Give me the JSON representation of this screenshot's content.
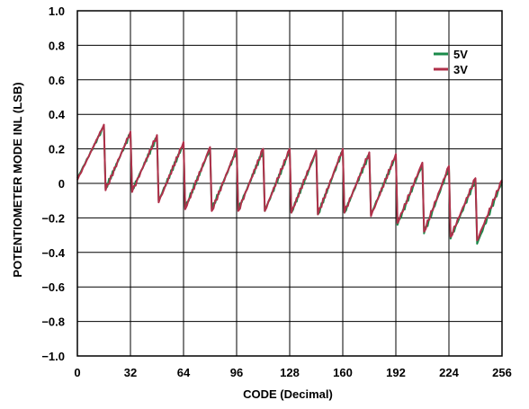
{
  "chart_data": {
    "type": "line",
    "xlabel": "CODE (Decimal)",
    "ylabel": "POTENTIOMETER MODE INL (LSB)",
    "xlim": [
      0,
      256
    ],
    "ylim": [
      -1.0,
      1.0
    ],
    "xticks": [
      0,
      32,
      64,
      96,
      128,
      160,
      192,
      224,
      256
    ],
    "xtick_labels": [
      "0",
      "32",
      "64",
      "96",
      "128",
      "160",
      "192",
      "224",
      "256"
    ],
    "yticks": [
      1.0,
      0.8,
      0.6,
      0.4,
      0.2,
      0,
      -0.2,
      -0.4,
      -0.6,
      -0.8,
      -1.0
    ],
    "ytick_labels": [
      "1.0",
      "0.8",
      "0.6",
      "0.4",
      "0.2",
      "0",
      "−0.2",
      "−0.4",
      "−0.6",
      "−0.8",
      "−1.0"
    ],
    "grid": true,
    "legend_position": "top-right",
    "series": [
      {
        "name": "5V",
        "color": "#1a8a4a",
        "x": [
          0,
          16,
          17,
          32,
          33,
          48,
          49,
          64,
          65,
          80,
          81,
          96,
          97,
          112,
          113,
          128,
          129,
          144,
          145,
          160,
          161,
          176,
          177,
          192,
          193,
          208,
          209,
          224,
          225,
          240,
          241,
          256
        ],
        "y": [
          0.03,
          0.33,
          -0.03,
          0.29,
          -0.04,
          0.27,
          -0.1,
          0.23,
          -0.14,
          0.2,
          -0.15,
          0.19,
          -0.15,
          0.19,
          -0.16,
          0.19,
          -0.17,
          0.18,
          -0.18,
          0.19,
          -0.17,
          0.17,
          -0.18,
          0.16,
          -0.24,
          0.11,
          -0.29,
          0.09,
          -0.32,
          0.02,
          -0.35,
          0.01
        ]
      },
      {
        "name": "3V",
        "color": "#b0304a",
        "x": [
          0,
          16,
          17,
          32,
          33,
          48,
          49,
          64,
          65,
          80,
          81,
          96,
          97,
          112,
          113,
          128,
          129,
          144,
          145,
          160,
          161,
          176,
          177,
          192,
          193,
          208,
          209,
          224,
          225,
          240,
          241,
          256
        ],
        "y": [
          0.02,
          0.34,
          -0.04,
          0.3,
          -0.05,
          0.28,
          -0.11,
          0.24,
          -0.15,
          0.21,
          -0.16,
          0.2,
          -0.16,
          0.2,
          -0.16,
          0.2,
          -0.17,
          0.19,
          -0.18,
          0.2,
          -0.17,
          0.18,
          -0.19,
          0.17,
          -0.23,
          0.12,
          -0.28,
          0.1,
          -0.31,
          0.03,
          -0.33,
          0.02
        ]
      }
    ]
  }
}
